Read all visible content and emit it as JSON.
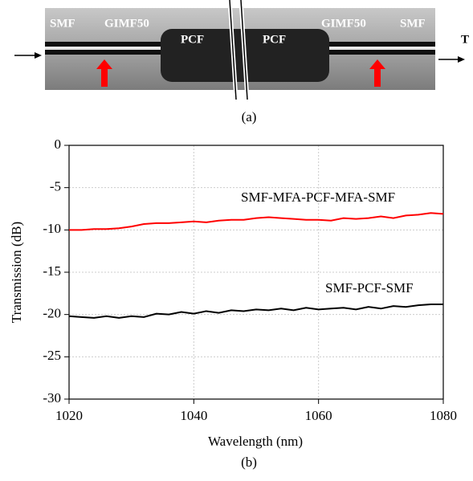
{
  "diagram": {
    "labels": [
      "SMF",
      "GIMF50",
      "PCF",
      "PCF",
      "GIMF50",
      "SMF",
      "T"
    ],
    "caption": "(a)"
  },
  "chart_data": {
    "type": "line",
    "caption": "(b)",
    "x_label": "Wavelength (nm)",
    "y_label": "Transmission (dB)",
    "x": [
      1020,
      1022,
      1024,
      1026,
      1028,
      1030,
      1032,
      1034,
      1036,
      1038,
      1040,
      1042,
      1044,
      1046,
      1048,
      1050,
      1052,
      1054,
      1056,
      1058,
      1060,
      1062,
      1064,
      1066,
      1068,
      1070,
      1072,
      1074,
      1076,
      1078,
      1080
    ],
    "series": [
      {
        "name": "SMF-MFA-PCF-MFA-SMF",
        "color": "#ff0000",
        "values": [
          -10.0,
          -10.0,
          -9.9,
          -9.9,
          -9.8,
          -9.6,
          -9.3,
          -9.2,
          -9.2,
          -9.1,
          -9.0,
          -9.1,
          -8.9,
          -8.8,
          -8.8,
          -8.6,
          -8.5,
          -8.6,
          -8.7,
          -8.8,
          -8.8,
          -8.9,
          -8.6,
          -8.7,
          -8.6,
          -8.4,
          -8.6,
          -8.3,
          -8.2,
          -8.0,
          -8.1
        ]
      },
      {
        "name": "SMF-PCF-SMF",
        "color": "#000000",
        "values": [
          -20.2,
          -20.3,
          -20.4,
          -20.2,
          -20.4,
          -20.2,
          -20.3,
          -19.9,
          -20.0,
          -19.7,
          -19.9,
          -19.6,
          -19.8,
          -19.5,
          -19.6,
          -19.4,
          -19.5,
          -19.3,
          -19.5,
          -19.2,
          -19.4,
          -19.3,
          -19.2,
          -19.4,
          -19.1,
          -19.3,
          -19.0,
          -19.1,
          -18.9,
          -18.8,
          -18.8
        ]
      }
    ],
    "xlim": [
      1020,
      1080
    ],
    "xticks": [
      1020,
      1040,
      1060,
      1080
    ],
    "ylim": [
      -30,
      0
    ],
    "yticks": [
      -30,
      -25,
      -20,
      -15,
      -10,
      -5,
      0
    ],
    "grid": true
  }
}
